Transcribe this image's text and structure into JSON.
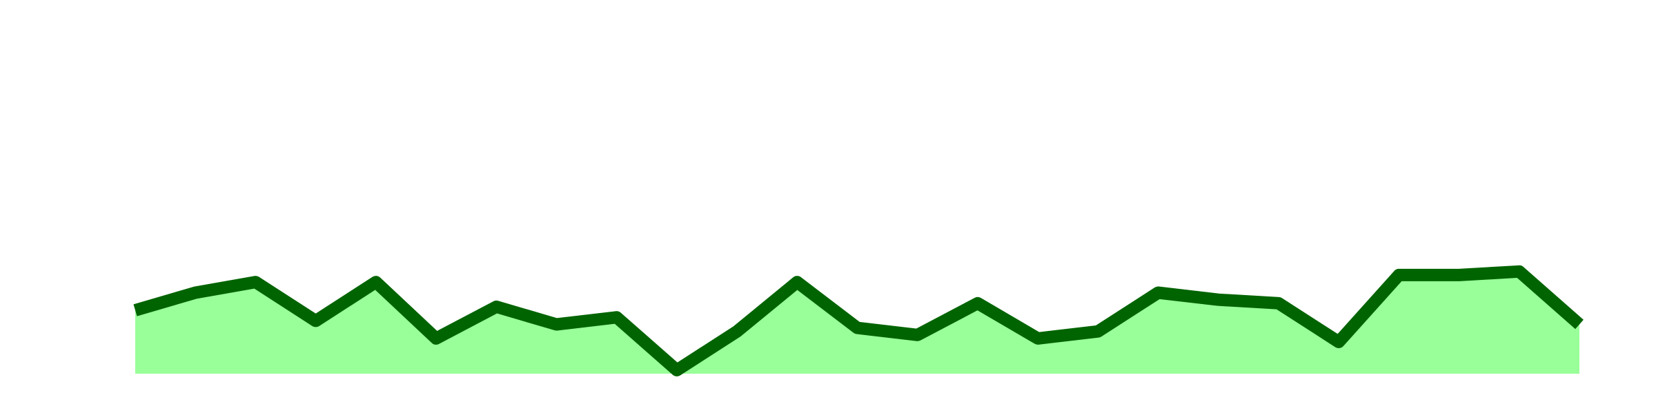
{
  "chart_data": {
    "type": "area",
    "categories": [
      null,
      null,
      null,
      null,
      null,
      null,
      null,
      null,
      null,
      null,
      null,
      null,
      null,
      null,
      null,
      null,
      null,
      null,
      null,
      null,
      null,
      null,
      null,
      null,
      null
    ],
    "values": [
      18,
      23,
      26,
      15,
      26,
      10,
      19,
      14,
      16,
      1,
      12,
      26,
      13,
      11,
      20,
      10,
      12,
      23,
      21,
      20,
      9,
      28,
      28,
      29,
      14
    ],
    "color": "#006400",
    "fill": "#99ff99",
    "ylim": [
      0,
      100
    ]
  }
}
